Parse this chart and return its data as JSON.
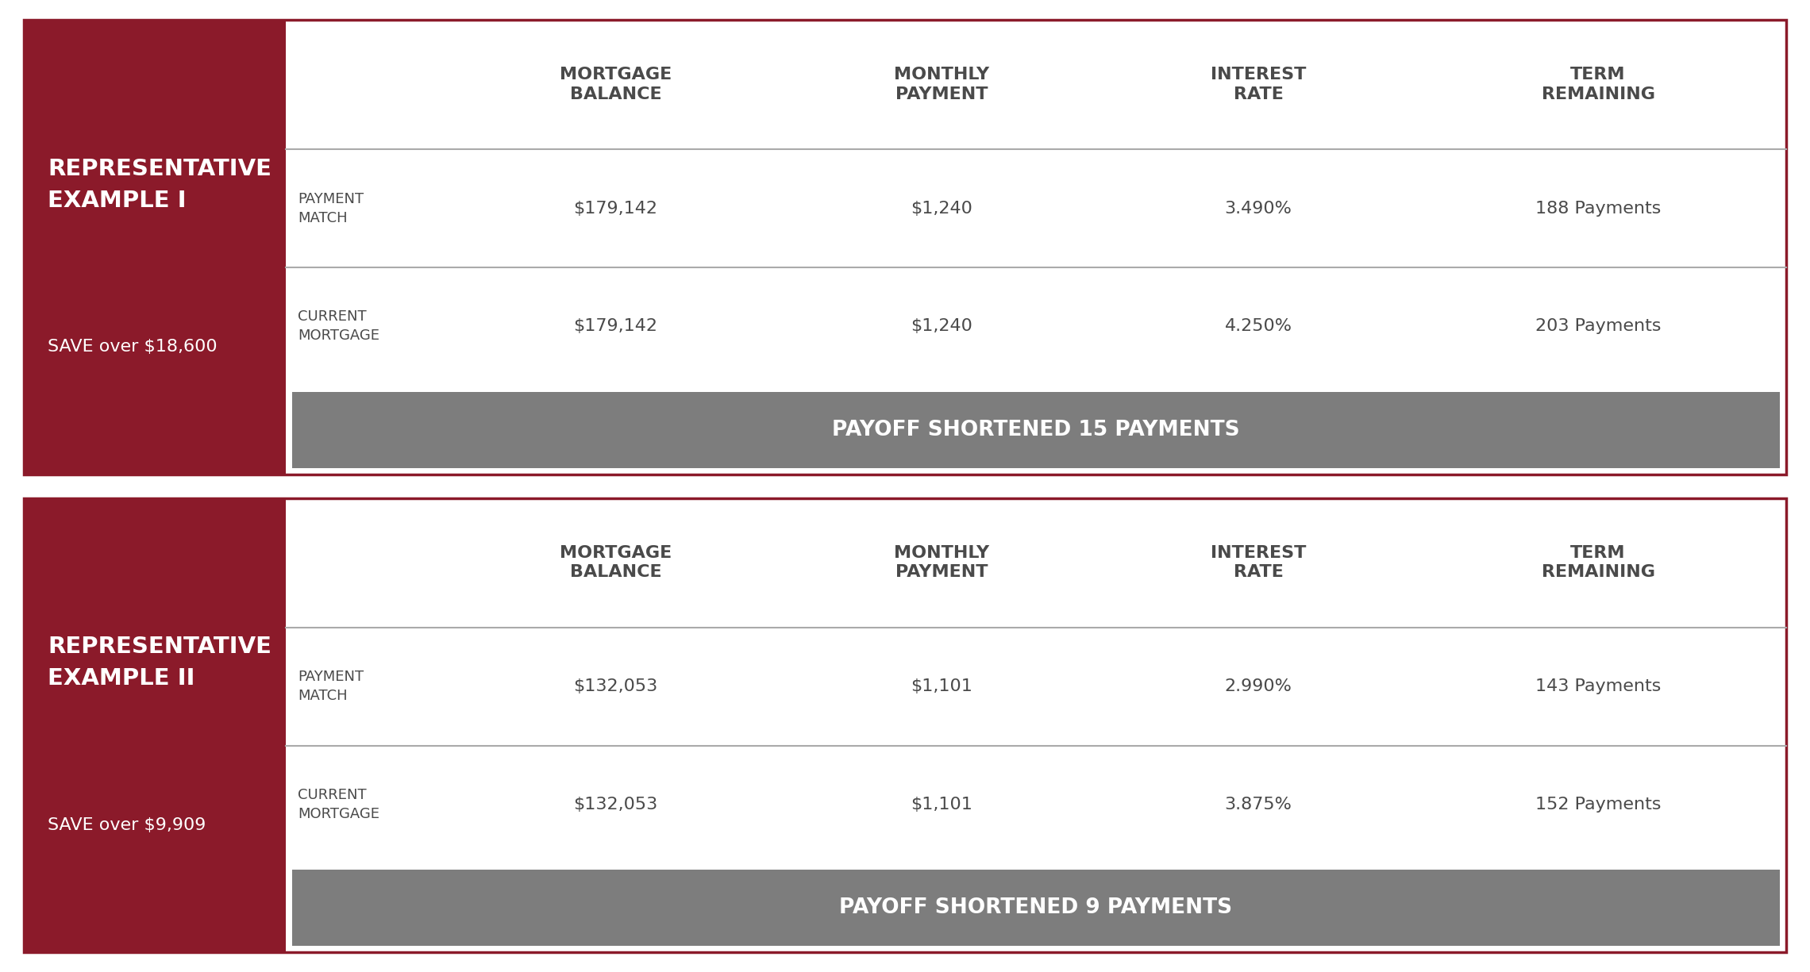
{
  "bg_color": "#ffffff",
  "dark_red": "#8B1A2A",
  "gray": "#7d7d7d",
  "dark_gray": "#4a4a4a",
  "border_color": "#8B1A2A",
  "examples": [
    {
      "title_line1": "REPRESENTATIVE",
      "title_line2": "EXAMPLE I",
      "save_text": "SAVE over $18,600",
      "col_headers": [
        "MORTGAGE\nBALANCE",
        "MONTHLY\nPAYMENT",
        "INTEREST\nRATE",
        "TERM\nREMAINING"
      ],
      "rows": [
        {
          "label_line1": "CURRENT",
          "label_line2": "MORTGAGE",
          "balance": "$179,142",
          "payment": "$1,240",
          "rate": "4.250%",
          "term": "203 Payments"
        },
        {
          "label_line1": "PAYMENT",
          "label_line2": "MATCH",
          "balance": "$179,142",
          "payment": "$1,240",
          "rate": "3.490%",
          "term": "188 Payments"
        }
      ],
      "footer": "PAYOFF SHORTENED 15 PAYMENTS"
    },
    {
      "title_line1": "REPRESENTATIVE",
      "title_line2": "EXAMPLE II",
      "save_text": "SAVE over $9,909",
      "col_headers": [
        "MORTGAGE\nBALANCE",
        "MONTHLY\nPAYMENT",
        "INTEREST\nRATE",
        "TERM\nREMAINING"
      ],
      "rows": [
        {
          "label_line1": "CURRENT",
          "label_line2": "MORTGAGE",
          "balance": "$132,053",
          "payment": "$1,101",
          "rate": "3.875%",
          "term": "152 Payments"
        },
        {
          "label_line1": "PAYMENT",
          "label_line2": "MATCH",
          "balance": "$132,053",
          "payment": "$1,101",
          "rate": "2.990%",
          "term": "143 Payments"
        }
      ],
      "footer": "PAYOFF SHORTENED 9 PAYMENTS"
    }
  ]
}
